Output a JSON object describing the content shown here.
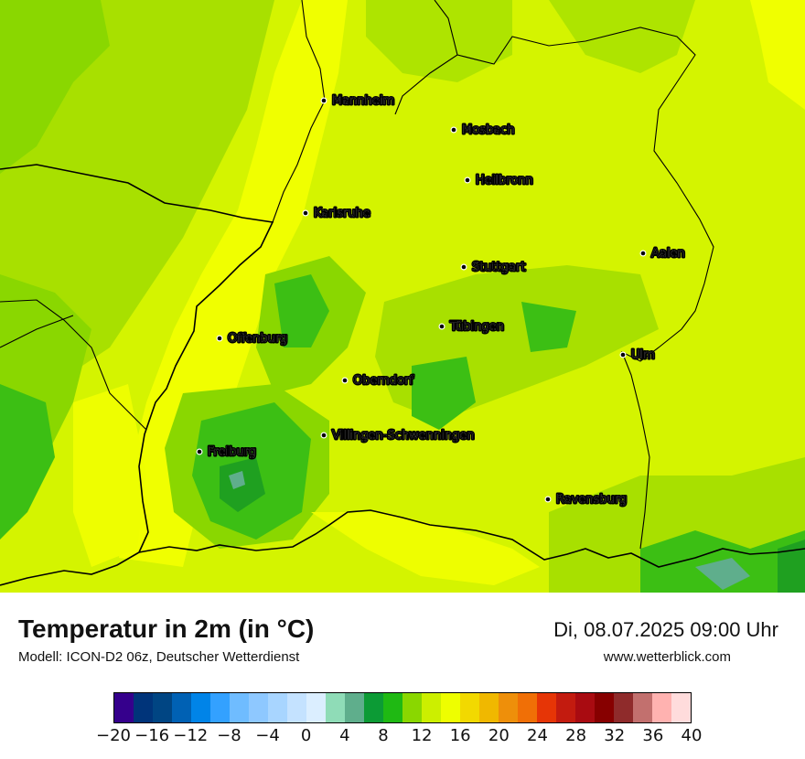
{
  "map": {
    "cities": [
      {
        "name": "Mannheim"
      },
      {
        "name": "Mosbach"
      },
      {
        "name": "Heilbronn"
      },
      {
        "name": "Karlsruhe"
      },
      {
        "name": "Aalen"
      },
      {
        "name": "Stuttgart"
      },
      {
        "name": "Tübingen"
      },
      {
        "name": "Offenburg"
      },
      {
        "name": "Ulm"
      },
      {
        "name": "Oberndorf"
      },
      {
        "name": "Villingen-Schwenningen"
      },
      {
        "name": "Freiburg"
      },
      {
        "name": "Ravensburg"
      }
    ]
  },
  "footer": {
    "title": "Temperatur in 2m (in °C)",
    "model": "Modell: ICON-D2 06z, Deutscher Wetterdienst",
    "datetime": "Di, 08.07.2025 09:00 Uhr",
    "website": "www.wetterblick.com"
  },
  "legend": {
    "colors": [
      "#35008c",
      "#00347a",
      "#004583",
      "#0061b4",
      "#0084e8",
      "#33a1ff",
      "#6fbcff",
      "#8ec8ff",
      "#a8d5ff",
      "#c4e2ff",
      "#dbeeff",
      "#8fdcb7",
      "#5fae8c",
      "#0c9b35",
      "#1fb913",
      "#8ad700",
      "#ccef00",
      "#eefe00",
      "#f2d900",
      "#f0b800",
      "#ee8f0a",
      "#f06f06",
      "#e63506",
      "#c31b0f",
      "#a90b11",
      "#870000",
      "#8f2b2b",
      "#c2706e",
      "#ffb2b0",
      "#ffdcdc"
    ],
    "ticks": [
      "−20",
      "−16",
      "−12",
      "−8",
      "−4",
      "0",
      "4",
      "8",
      "12",
      "16",
      "20",
      "24",
      "28",
      "32",
      "36",
      "40"
    ]
  }
}
